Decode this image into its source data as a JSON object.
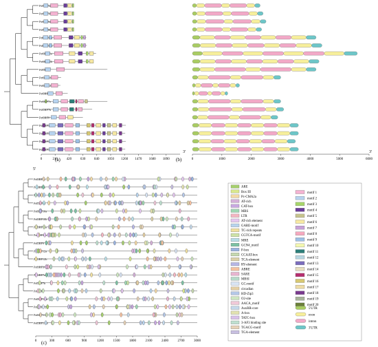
{
  "panels": {
    "a": "(a)",
    "b": "(b)",
    "c": "(c)"
  },
  "end_marks": {
    "five_prime": "5'",
    "three_prime": "3'"
  },
  "genes_top": [
    "PuGRF5a",
    "PuGRF5b",
    "PuGRF6a",
    "PuGRF6b",
    "PuGRF10a",
    "PuGRF10b",
    "PuGRF11a",
    "PuGRF11b",
    "PuGRF9",
    "PuGRF12a",
    "PuGRF12b",
    "PuGRF3/4",
    "PuGRF7a",
    "PuGRF7b",
    "PuGRF8",
    "PuGRF1/2a",
    "PuGRF1/2b",
    "PuGRF1/2c",
    "PuGRF1/2d"
  ],
  "genes_c": [
    "PuGRF5a",
    "PuGRF5b",
    "PuGRF6a",
    "PuGRF6b",
    "PuGRF10a",
    "PuGRF10b",
    "PuGRF11a",
    "PuGRF11b",
    "PuGRF9",
    "PuGRF12a",
    "PuGRF12b",
    "PuGRF3/4",
    "PuGRF7a",
    "PuGRF7b",
    "PuGRF8",
    "PuGRF1/2a",
    "PuGRF1/2b",
    "PuGRF1/2c",
    "PuGRF1/2d"
  ],
  "axis_a": {
    "ticks": [
      "0",
      "210",
      "420",
      "630",
      "840",
      "1050",
      "1260",
      "1470",
      "1680",
      "1890"
    ],
    "end": "2100"
  },
  "axis_b": {
    "ticks": [
      "0",
      "1000",
      "2000",
      "3000",
      "4000",
      "5000",
      "6000"
    ]
  },
  "axis_c": {
    "ticks": [
      "0",
      "300",
      "600",
      "900",
      "1200",
      "1500",
      "1800",
      "2100",
      "2400",
      "2700",
      "3000"
    ]
  },
  "protein_len": [
    480,
    450,
    480,
    470,
    680,
    690,
    830,
    790,
    1000,
    300,
    290,
    400,
    1000,
    770,
    630,
    1280,
    1270,
    1280,
    1270
  ],
  "gene_len": [
    2300,
    2400,
    2500,
    2350,
    4200,
    4400,
    5600,
    4300,
    4200,
    3000,
    1600,
    1200,
    3000,
    3100,
    2900,
    3600,
    3600,
    3500,
    3600
  ],
  "cis_legend": [
    "ARE",
    "Box III",
    "Pc-CMA2a",
    "AT-rich",
    "CAT-box",
    "MBS",
    "LTR",
    "AT-rich element",
    "GARE-motif",
    "TC-rich repeats",
    "CGTCA-motif",
    "MRE",
    "GCN4_motif",
    "P-box",
    "CCAAT-box",
    "TCA-element",
    "RY-element",
    "ABRE",
    "SARE",
    "MBSI",
    "GC-motif",
    "circadian",
    "HD-Zip3",
    "O2-site",
    "AACA_motif",
    "AuxRR-core",
    "A-box",
    "TATC-box",
    "3-AF3 binding site",
    "TGACG-motif",
    "TGA-element"
  ],
  "cis_colors": [
    "#a6cf6e",
    "#d9e88c",
    "#f3d9a6",
    "#d4b0d8",
    "#c8a8e0",
    "#9fd7b4",
    "#f4b6c2",
    "#e5c7f0",
    "#b8d4ee",
    "#f0e0a0",
    "#cfe3a7",
    "#b9dfe8",
    "#7dc2a4",
    "#9ab3e0",
    "#c6d8b0",
    "#dcd0a8",
    "#b7b7e6",
    "#f6c1a0",
    "#e8b4d0",
    "#b5d9c9",
    "#d8e4f4",
    "#e4cfa4",
    "#b4c7e7",
    "#cde6c0",
    "#f0c8d8",
    "#c4d8ea",
    "#e2e2b0",
    "#d9c1e9",
    "#bfe0d0",
    "#e6d2b8",
    "#c9c0e2"
  ],
  "motif_legend": [
    "motif 1",
    "motif 2",
    "motif 3",
    "motif 4",
    "motif 5",
    "motif 6",
    "motif 7",
    "motif 8",
    "motif 9",
    "motif 10",
    "motif 11",
    "motif 12",
    "motif 13",
    "motif 14",
    "motif 15",
    "motif 16",
    "motif 17",
    "motif 18",
    "motif 19",
    "motif 20"
  ],
  "motif_colors": [
    "#f4b3d2",
    "#b7d3ef",
    "#a7d66a",
    "#6a3d9a",
    "#c7c48e",
    "#f7e9a3",
    "#c7a1d8",
    "#f6a9bf",
    "#9dc1e6",
    "#f3f8b0",
    "#2d7f7a",
    "#b8d7e2",
    "#7b6dbd",
    "#e7dec0",
    "#b62f6f",
    "#d7c873",
    "#eedca6",
    "#7a3b8f",
    "#a8b49b",
    "#6b7f3b"
  ],
  "struct_legend": [
    {
      "label": "5'UTR",
      "color": "#a9cc63"
    },
    {
      "label": "exon",
      "color": "#f7ef9b"
    },
    {
      "label": "intron",
      "color": "#f2a9c7"
    },
    {
      "label": "3'UTR",
      "color": "#6dc6c8"
    }
  ]
}
